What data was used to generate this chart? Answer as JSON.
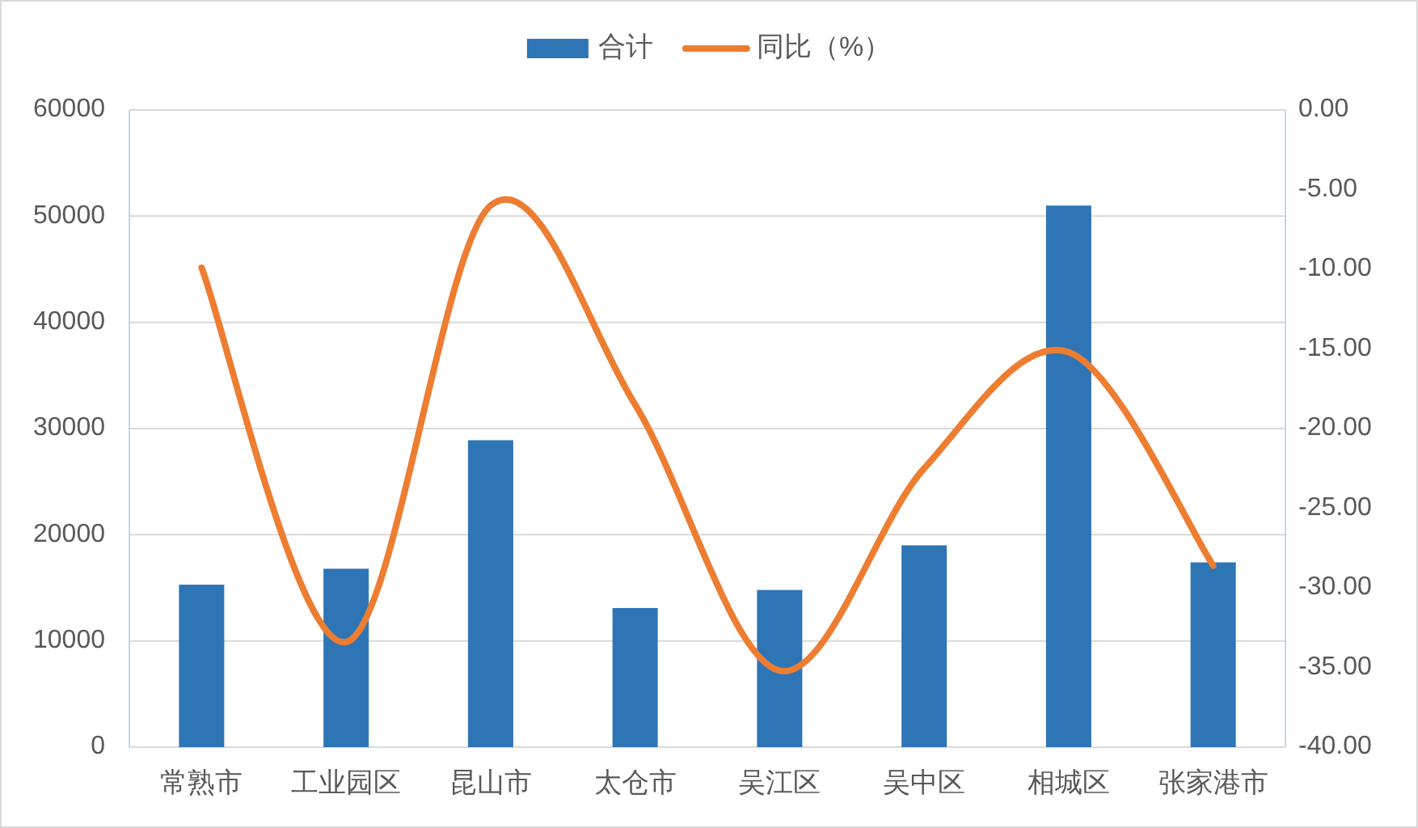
{
  "chart_data": {
    "type": "bar",
    "categories": [
      "常熟市",
      "工业园区",
      "昆山市",
      "太仓市",
      "吴江区",
      "吴中区",
      "相城区",
      "张家港市"
    ],
    "series": [
      {
        "name": "合计",
        "color": "#2e75b6",
        "values": [
          15300,
          16800,
          28900,
          13100,
          14800,
          19000,
          51000,
          17400
        ]
      },
      {
        "name": "同比（%）",
        "type": "line",
        "axis": "y2",
        "color": "#ed7d31",
        "values": [
          -9.9,
          -33.4,
          -6.0,
          -18.5,
          -35.2,
          -22.5,
          -15.2,
          -28.6
        ]
      }
    ],
    "ylim": [
      0,
      60000
    ],
    "yticks": [
      0,
      10000,
      20000,
      30000,
      40000,
      50000,
      60000
    ],
    "y2lim": [
      -40,
      0
    ],
    "y2ticks": [
      {
        "value": 0,
        "label": "0.00"
      },
      {
        "value": -5,
        "label": "-5.00"
      },
      {
        "value": -10,
        "label": "-10.00"
      },
      {
        "value": -15,
        "label": "-15.00"
      },
      {
        "value": -20,
        "label": "-20.00"
      },
      {
        "value": -25,
        "label": "-25.00"
      },
      {
        "value": -30,
        "label": "-30.00"
      },
      {
        "value": -35,
        "label": "-35.00"
      },
      {
        "value": -40,
        "label": "-40.00"
      }
    ],
    "grid": "y",
    "legend": "top",
    "line_style": "solid"
  }
}
